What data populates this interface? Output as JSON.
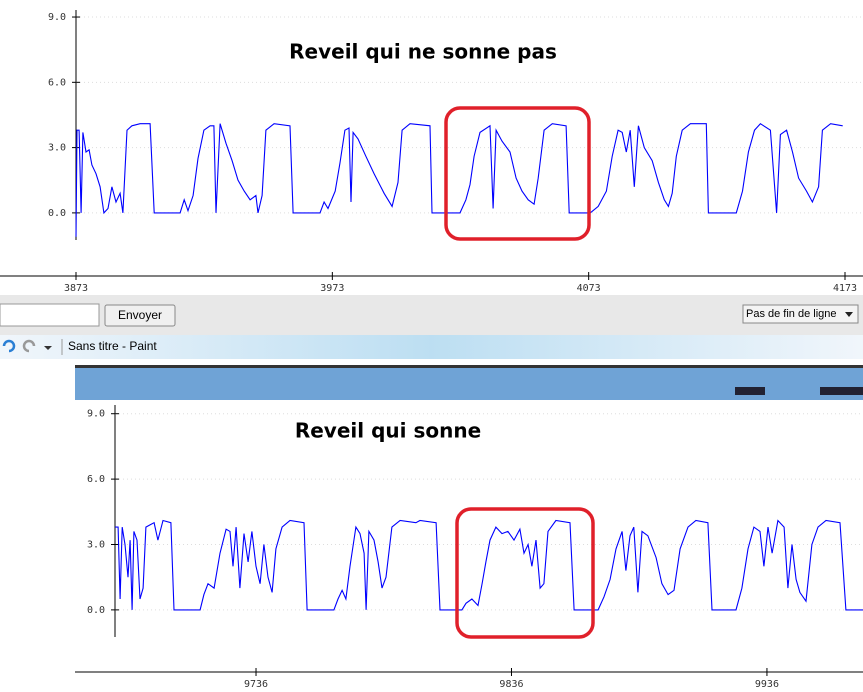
{
  "chart_data": [
    {
      "type": "line",
      "title": "Reveil qui ne sonne pas",
      "xlim": [
        3873,
        4173
      ],
      "ylim": [
        -2.9,
        9.3
      ],
      "xticks": [
        3873,
        3973,
        4073,
        4173
      ],
      "yticks": [
        {
          "value": 0,
          "label": "0.0"
        },
        {
          "value": 3,
          "label": "3.0"
        },
        {
          "value": 6,
          "label": "6.0"
        },
        {
          "value": 9,
          "label": "9.0"
        }
      ],
      "grid": true,
      "series": [
        {
          "color": "#0000ff",
          "x": [
            3873.0,
            3873.4,
            3874.2,
            3875.0,
            3875.7,
            3876.9,
            3878.1,
            3879.2,
            3880.8,
            3882.4,
            3883.9,
            3885.5,
            3887.0,
            3888.6,
            3890.2,
            3891.3,
            3892.9,
            3894.8,
            3898.0,
            3901.9,
            3903.5,
            3913.6,
            3915.2,
            3916.7,
            3918.7,
            3920.6,
            3922.9,
            3925.3,
            3926.8,
            3927.6,
            3929.2,
            3931.5,
            3933.9,
            3936.2,
            3938.6,
            3940.9,
            3943.2,
            3944.0,
            3945.6,
            3947.1,
            3950.3,
            3956.5,
            3957.7,
            3968.2,
            3969.8,
            3971.3,
            3974.1,
            3976.0,
            3977.9,
            3979.5,
            3980.3,
            3981.1,
            3983.0,
            3986.1,
            3989.3,
            3993.2,
            3996.3,
            3998.6,
            4000.2,
            4003.3,
            4011.1,
            4011.9,
            4022.8,
            4025.1,
            4026.7,
            4028.3,
            4030.6,
            4034.5,
            4035.7,
            4036.9,
            4039.2,
            4042.3,
            4044.7,
            4047.0,
            4049.4,
            4051.7,
            4053.3,
            4055.6,
            4058.8,
            4064.2,
            4065.4,
            4073.6,
            4076.7,
            4079.9,
            4082.2,
            4084.5,
            4086.1,
            4087.7,
            4089.2,
            4090.8,
            4092.4,
            4094.7,
            4097.8,
            4100.2,
            4102.5,
            4104.1,
            4105.6,
            4107.2,
            4109.5,
            4112.7,
            4118.9,
            4119.7,
            4130.6,
            4133.0,
            4135.3,
            4137.7,
            4140.0,
            4143.9,
            4146.3,
            4147.8,
            4150.2,
            4152.5,
            4154.9,
            4158.0,
            4160.3,
            4162.7,
            4164.2,
            4167.4,
            4172.1
          ],
          "values": [
            -1.1,
            3.8,
            3.8,
            0,
            3.7,
            2.8,
            2.9,
            2.2,
            1.8,
            1.2,
            0,
            0.2,
            1.2,
            0.5,
            0.9,
            0,
            3.8,
            4.0,
            4.1,
            4.1,
            0,
            0,
            0.6,
            0.1,
            0.8,
            2.5,
            3.8,
            4.0,
            4.0,
            0,
            4.1,
            3.2,
            2.4,
            1.5,
            1.0,
            0.6,
            0.8,
            0,
            0.8,
            3.8,
            4.1,
            4.0,
            0,
            0,
            0.5,
            0.2,
            1.0,
            2.3,
            3.8,
            3.9,
            0.5,
            3.7,
            3.4,
            2.6,
            1.8,
            0.9,
            0.3,
            1.4,
            3.8,
            4.1,
            4.0,
            0,
            0,
            0.6,
            1.3,
            2.6,
            3.7,
            4.0,
            0.2,
            3.8,
            3.3,
            2.8,
            1.6,
            1.0,
            0.6,
            0.4,
            1.6,
            3.8,
            4.1,
            4.0,
            0,
            0,
            0.3,
            1.0,
            2.6,
            3.8,
            3.7,
            2.8,
            3.8,
            1.2,
            4.0,
            3.0,
            2.4,
            1.4,
            0.6,
            0.3,
            0.9,
            2.6,
            3.8,
            4.1,
            4.1,
            0,
            0,
            1.0,
            2.8,
            3.8,
            4.1,
            3.8,
            0,
            3.6,
            3.8,
            2.8,
            1.6,
            1.0,
            0.5,
            1.2,
            3.8,
            4.1,
            4.0
          ]
        }
      ]
    },
    {
      "type": "line",
      "title": "Reveil qui sonne",
      "xlim": [
        9680.8,
        9973.6
      ],
      "ylim": [
        -2.85,
        9.4
      ],
      "xticks": [
        9736,
        9836,
        9936
      ],
      "yticks": [
        {
          "value": 0,
          "label": "0.0"
        },
        {
          "value": 3,
          "label": "3.0"
        },
        {
          "value": 6,
          "label": "6.0"
        },
        {
          "value": 9,
          "label": "9.0"
        }
      ],
      "grid": true,
      "series": [
        {
          "color": "#0000ff",
          "x": [
            9680.8,
            9682.0,
            9682.8,
            9683.6,
            9684.7,
            9685.9,
            9686.7,
            9687.5,
            9688.2,
            9689.4,
            9690.6,
            9691.8,
            9692.9,
            9694.5,
            9696.1,
            9697.6,
            9699.6,
            9702.7,
            9703.9,
            9714.1,
            9715.6,
            9717.2,
            9719.6,
            9721.9,
            9724.3,
            9725.8,
            9727.0,
            9728.2,
            9729.7,
            9731.3,
            9732.9,
            9734.4,
            9736.0,
            9737.6,
            9739.1,
            9740.7,
            9742.3,
            9743.8,
            9746.2,
            9749.3,
            9754.8,
            9756.0,
            9766.5,
            9768.1,
            9769.7,
            9771.2,
            9772.8,
            9775.1,
            9776.7,
            9778.3,
            9779.1,
            9780.2,
            9782.2,
            9783.8,
            9785.3,
            9786.9,
            9789.2,
            9792.4,
            9798.6,
            9800.2,
            9806.5,
            9808.0,
            9816.6,
            9818.2,
            9820.5,
            9822.9,
            9824.5,
            9826.0,
            9827.6,
            9829.9,
            9832.3,
            9834.6,
            9837.0,
            9839.3,
            9840.9,
            9842.5,
            9844.0,
            9845.6,
            9847.2,
            9848.7,
            9850.3,
            9853.4,
            9858.9,
            9860.5,
            9869.9,
            9872.2,
            9874.6,
            9876.9,
            9879.3,
            9880.8,
            9882.4,
            9883.9,
            9885.5,
            9887.1,
            9889.4,
            9892.6,
            9894.9,
            9897.3,
            9899.6,
            9902.0,
            9905.1,
            9908.2,
            9912.9,
            9914.5,
            9923.9,
            9926.2,
            9928.6,
            9930.9,
            9933.3,
            9934.8,
            9936.4,
            9938.0,
            9940.3,
            9942.7,
            9944.2,
            9945.8,
            9947.4,
            9948.9,
            9951.3,
            9953.6,
            9956.0,
            9959.1,
            9964.6,
            9966.9,
            9973.6
          ],
          "values": [
            3.8,
            3.8,
            0.5,
            3.8,
            3.0,
            1.5,
            3.2,
            0,
            3.6,
            3.2,
            0.5,
            1.0,
            3.8,
            3.9,
            4.0,
            3.2,
            4.1,
            4.0,
            0,
            0,
            0.7,
            1.2,
            1.0,
            2.6,
            3.7,
            3.6,
            2.0,
            3.8,
            1.0,
            3.5,
            2.2,
            3.6,
            2.0,
            1.2,
            3.0,
            1.5,
            0.8,
            2.8,
            3.8,
            4.1,
            4.0,
            0,
            0,
            0.5,
            0.9,
            0.5,
            2.0,
            3.8,
            3.5,
            2.6,
            0,
            3.6,
            3.2,
            2.2,
            1.0,
            1.5,
            3.8,
            4.1,
            4.0,
            4.1,
            4.0,
            0,
            0,
            0.3,
            0.5,
            0.2,
            1.2,
            2.2,
            3.2,
            3.8,
            3.5,
            3.6,
            3.2,
            3.7,
            2.6,
            3.0,
            2.0,
            3.2,
            1.0,
            1.2,
            3.6,
            4.1,
            4.0,
            0,
            0,
            0.6,
            1.4,
            2.8,
            3.6,
            1.8,
            3.4,
            3.8,
            0.8,
            3.6,
            3.4,
            2.4,
            1.2,
            0.7,
            0.9,
            2.8,
            3.8,
            4.1,
            4.0,
            0,
            0,
            1.0,
            2.8,
            3.8,
            3.6,
            2.0,
            3.8,
            2.6,
            4.1,
            3.8,
            1.0,
            3.0,
            1.4,
            0.8,
            0.4,
            3.0,
            3.8,
            4.1,
            4.0,
            0,
            0
          ]
        }
      ]
    }
  ],
  "ui": {
    "send_button": "Envoyer",
    "line_ending": "Pas de fin de ligne",
    "window_title": "Sans titre - Paint"
  }
}
